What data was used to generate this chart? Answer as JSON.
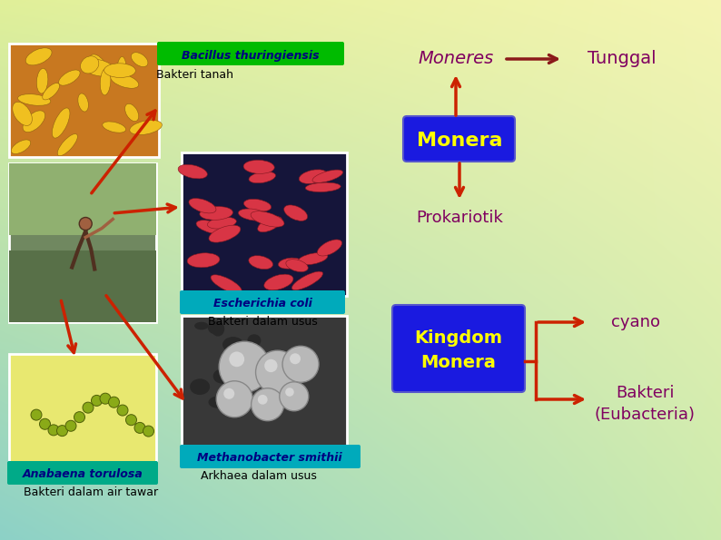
{
  "moneres_text": "Moneres",
  "moneres_color": "#800060",
  "tunggal_text": "Tunggal",
  "tunggal_color": "#800060",
  "monera_box_text": "Monera",
  "monera_box_color": "#1a1ae0",
  "monera_text_color": "#ffff00",
  "prokariotik_text": "Prokariotik",
  "prokariotik_color": "#800060",
  "kingdom_monera_text": "Kingdom\nMonera",
  "kingdom_monera_box_color": "#1a1ae0",
  "kingdom_monera_text_color": "#ffff00",
  "cyano_text": "cyano",
  "cyano_color": "#800060",
  "bakteri_eubacteria_text": "Bakteri\n(Eubacteria)",
  "bakteri_eubacteria_color": "#800060",
  "arrow_color_red": "#cc2200",
  "arrow_color_darkred": "#8b1a1a",
  "label_bacillus_italic": "Bacillus thuringiensis",
  "label_bacillus_color": "#000080",
  "label_bakteri_tanah": "Bakteri tanah",
  "label_bakteri_tanah_color": "#000000",
  "label_ecoli_italic": "Escherichia coli",
  "label_ecoli_color": "#000080",
  "label_bakteri_usus": "Bakteri dalam usus",
  "label_bakteri_usus_color": "#000000",
  "label_methanobacter_italic": "Methanobacter smithii",
  "label_methanobacter_color": "#000080",
  "label_arkhaea": "Arkhaea dalam usus",
  "label_arkhaea_color": "#000000",
  "label_anabaena_italic": "Anabaena torulosa",
  "label_anabaena_color": "#000080",
  "label_air_tawar": "Bakteri dalam air tawar",
  "label_air_tawar_color": "#000000",
  "bacillus_label_bg": "#00bb00",
  "ecoli_label_bg": "#00aabb",
  "methanobacter_label_bg": "#00aabb",
  "anabaena_label_bg": "#00aa88",
  "bg_tl": [
    0.88,
    0.94,
    0.6
  ],
  "bg_tr": [
    0.96,
    0.96,
    0.7
  ],
  "bg_bl": [
    0.55,
    0.82,
    0.78
  ],
  "bg_br": [
    0.8,
    0.92,
    0.68
  ]
}
